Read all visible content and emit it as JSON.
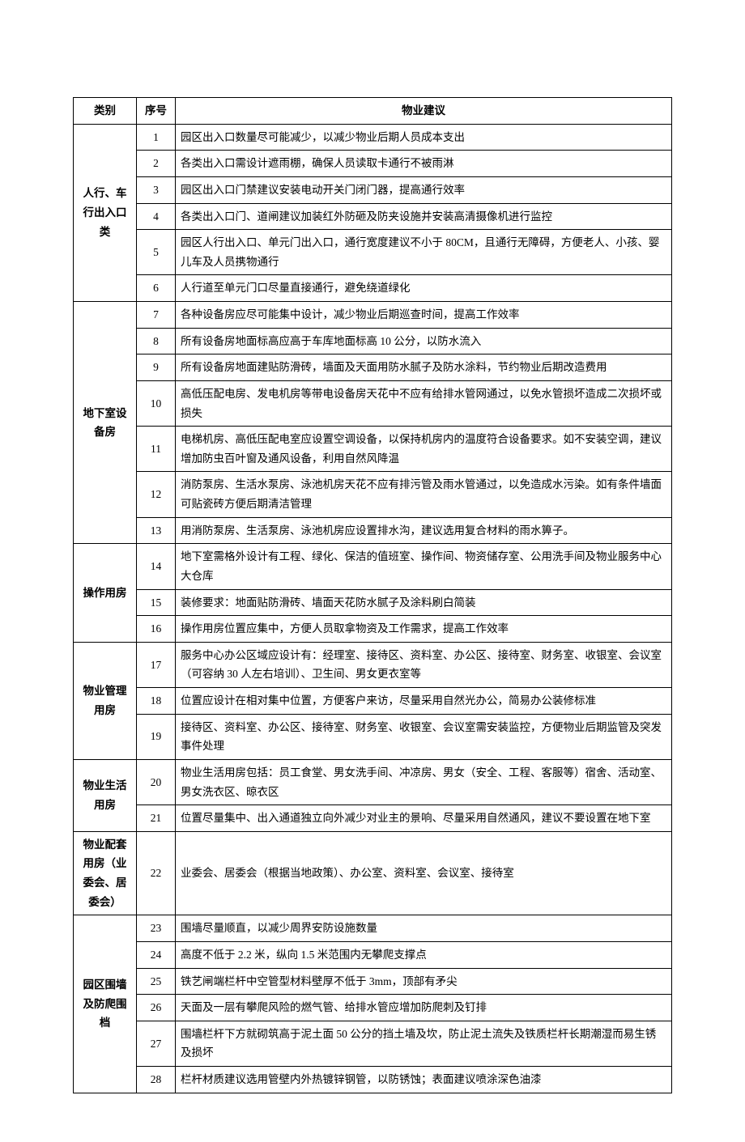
{
  "headers": {
    "category": "类别",
    "seq": "序号",
    "suggestion": "物业建议"
  },
  "groups": [
    {
      "category": "人行、车行出入口类",
      "rows": [
        {
          "seq": "1",
          "text": "园区出入口数量尽可能减少，以减少物业后期人员成本支出"
        },
        {
          "seq": "2",
          "text": "各类出入口需设计遮雨棚，确保人员读取卡通行不被雨淋"
        },
        {
          "seq": "3",
          "text": "园区出入口门禁建议安装电动开关门闭门器，提高通行效率"
        },
        {
          "seq": "4",
          "text": "各类出入口门、道闸建议加装红外防砸及防夹设施并安装高清摄像机进行监控"
        },
        {
          "seq": "5",
          "text": "园区人行出入口、单元门出入口，通行宽度建议不小于 80CM，且通行无障碍，方便老人、小孩、婴儿车及人员携物通行"
        },
        {
          "seq": "6",
          "text": "人行道至单元门口尽量直接通行，避免绕道绿化"
        }
      ]
    },
    {
      "category": "地下室设备房",
      "rows": [
        {
          "seq": "7",
          "text": "各种设备房应尽可能集中设计，减少物业后期巡查时间，提高工作效率"
        },
        {
          "seq": "8",
          "text": "所有设备房地面标高应高于车库地面标高 10 公分，以防水流入"
        },
        {
          "seq": "9",
          "text": "所有设备房地面建贴防滑砖，墙面及天面用防水腻子及防水涂料，节约物业后期改造费用"
        },
        {
          "seq": "10",
          "text": "高低压配电房、发电机房等带电设备房天花中不应有给排水管网通过，以免水管损坏造成二次损坏或损失"
        },
        {
          "seq": "11",
          "text": "电梯机房、高低压配电室应设置空调设备，以保持机房内的温度符合设备要求。如不安装空调，建议增加防虫百叶窗及通风设备，利用自然风降温"
        },
        {
          "seq": "12",
          "text": "消防泵房、生活水泵房、泳池机房天花不应有排污管及雨水管通过，以免造成水污染。如有条件墙面可贴瓷砖方便后期清洁管理"
        },
        {
          "seq": "13",
          "text": "用消防泵房、生活泵房、泳池机房应设置排水沟，建议选用复合材料的雨水箅子。"
        }
      ]
    },
    {
      "category": "操作用房",
      "rows": [
        {
          "seq": "14",
          "text": "地下室需格外设计有工程、绿化、保洁的值班室、操作间、物资储存室、公用洗手间及物业服务中心大仓库"
        },
        {
          "seq": "15",
          "text": "装修要求：地面贴防滑砖、墙面天花防水腻子及涂料刷白简装"
        },
        {
          "seq": "16",
          "text": "操作用房位置应集中，方便人员取拿物资及工作需求，提高工作效率"
        }
      ]
    },
    {
      "category": "物业管理用房",
      "rows": [
        {
          "seq": "17",
          "text": "服务中心办公区域应设计有：经理室、接待区、资料室、办公区、接待室、财务室、收银室、会议室（可容纳 30 人左右培训）、卫生间、男女更衣室等"
        },
        {
          "seq": "18",
          "text": "位置应设计在相对集中位置，方便客户来访，尽量采用自然光办公，简易办公装修标准"
        },
        {
          "seq": "19",
          "text": "接待区、资料室、办公区、接待室、财务室、收银室、会议室需安装监控，方便物业后期监管及突发事件处理"
        }
      ]
    },
    {
      "category": "物业生活用房",
      "rows": [
        {
          "seq": "20",
          "text": "物业生活用房包括：员工食堂、男女洗手间、冲凉房、男女（安全、工程、客服等）宿舍、活动室、男女洗衣区、晾衣区"
        },
        {
          "seq": "21",
          "text": "位置尽量集中、出入通道独立向外减少对业主的景响、尽量采用自然通风，建议不要设置在地下室"
        }
      ]
    },
    {
      "category": "物业配套用房（业委会、居委会）",
      "rows": [
        {
          "seq": "22",
          "text": "业委会、居委会（根据当地政策）、办公室、资料室、会议室、接待室"
        }
      ]
    },
    {
      "category": "园区围墙及防爬围档",
      "rows": [
        {
          "seq": "23",
          "text": "围墙尽量顺直，以减少周界安防设施数量"
        },
        {
          "seq": "24",
          "text": "高度不低于 2.2 米，纵向 1.5 米范围内无攀爬支撑点"
        },
        {
          "seq": "25",
          "text": "铁艺闸端栏杆中空管型材料壁厚不低于 3mm，顶部有矛尖"
        },
        {
          "seq": "26",
          "text": "天面及一层有攀爬风险的燃气管、给排水管应增加防爬刺及钉排"
        },
        {
          "seq": "27",
          "text": "围墙栏杆下方就砌筑高于泥土面 50 公分的挡土墙及坎，防止泥土流失及铁质栏杆长期潮湿而易生锈及损坏"
        },
        {
          "seq": "28",
          "text": "栏杆材质建议选用管壁内外热镀锌钢管，以防锈蚀；表面建议喷涂深色油漆"
        }
      ]
    }
  ]
}
